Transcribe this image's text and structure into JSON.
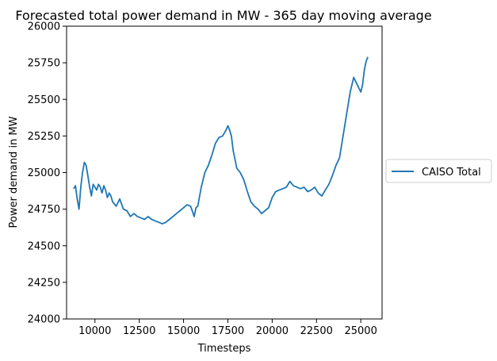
{
  "chart_data": {
    "type": "line",
    "title": "Forecasted total power demand in MW - 365 day moving average",
    "xlabel": "Timesteps",
    "ylabel": "Power demand in MW",
    "xlim": [
      8400,
      26200
    ],
    "ylim": [
      24000,
      26000
    ],
    "xticks": [
      10000,
      12500,
      15000,
      17500,
      20000,
      22500,
      25000
    ],
    "yticks": [
      24000,
      24250,
      24500,
      24750,
      25000,
      25250,
      25500,
      25750,
      26000
    ],
    "grid": false,
    "legend_position": "outside-right",
    "series": [
      {
        "name": "CAISO Total",
        "color": "#1f77b4",
        "x": [
          8800,
          8900,
          9000,
          9100,
          9200,
          9300,
          9400,
          9500,
          9600,
          9700,
          9800,
          9900,
          10000,
          10100,
          10200,
          10300,
          10400,
          10500,
          10600,
          10700,
          10800,
          10900,
          11000,
          11200,
          11400,
          11600,
          11800,
          12000,
          12200,
          12400,
          12600,
          12800,
          13000,
          13200,
          13400,
          13600,
          13800,
          14000,
          14200,
          14400,
          14600,
          14800,
          15000,
          15200,
          15400,
          15600,
          15700,
          15800,
          16000,
          16200,
          16400,
          16600,
          16800,
          17000,
          17200,
          17400,
          17500,
          17600,
          17700,
          17800,
          18000,
          18200,
          18400,
          18600,
          18800,
          19000,
          19200,
          19400,
          19600,
          19800,
          20000,
          20200,
          20400,
          20600,
          20800,
          21000,
          21200,
          21400,
          21600,
          21800,
          22000,
          22200,
          22400,
          22600,
          22800,
          23000,
          23200,
          23400,
          23600,
          23800,
          24000,
          24200,
          24400,
          24600,
          24800,
          25000,
          25100,
          25200,
          25300,
          25400
        ],
        "values": [
          24890,
          24910,
          24820,
          24750,
          24900,
          25000,
          25070,
          25050,
          24980,
          24900,
          24840,
          24920,
          24900,
          24880,
          24920,
          24900,
          24860,
          24910,
          24880,
          24830,
          24860,
          24840,
          24800,
          24770,
          24820,
          24750,
          24740,
          24700,
          24720,
          24700,
          24690,
          24680,
          24700,
          24680,
          24670,
          24660,
          24650,
          24660,
          24680,
          24700,
          24720,
          24740,
          24760,
          24780,
          24770,
          24700,
          24760,
          24770,
          24900,
          25000,
          25050,
          25120,
          25200,
          25240,
          25250,
          25290,
          25320,
          25290,
          25250,
          25150,
          25030,
          25000,
          24950,
          24870,
          24800,
          24770,
          24750,
          24720,
          24740,
          24760,
          24830,
          24870,
          24880,
          24890,
          24900,
          24940,
          24910,
          24900,
          24890,
          24900,
          24870,
          24880,
          24900,
          24860,
          24840,
          24880,
          24920,
          24980,
          25050,
          25100,
          25250,
          25400,
          25550,
          25650,
          25600,
          25550,
          25600,
          25700,
          25760,
          25790
        ]
      }
    ]
  }
}
